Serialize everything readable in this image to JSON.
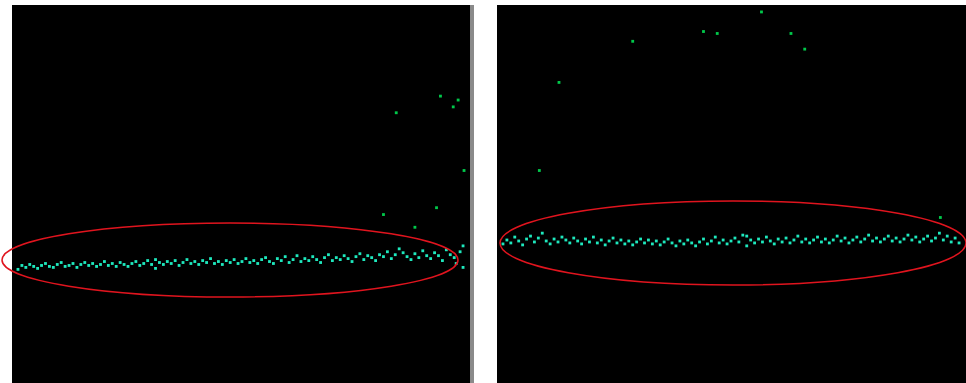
{
  "chart_data": [
    {
      "type": "scatter",
      "xlim": [
        0,
        458
      ],
      "ylim": [
        0,
        378
      ],
      "grid": false,
      "tick_labels": false,
      "series": [
        {
          "color": "#1ee8bd",
          "marker": "square",
          "values": [
            [
              2,
              112
            ],
            [
              6,
              116
            ],
            [
              10,
              114
            ],
            [
              14,
              117
            ],
            [
              18,
              115
            ],
            [
              22,
              113
            ],
            [
              26,
              116
            ],
            [
              30,
              118
            ],
            [
              34,
              115
            ],
            [
              38,
              114
            ],
            [
              42,
              117
            ],
            [
              46,
              119
            ],
            [
              50,
              115
            ],
            [
              54,
              116
            ],
            [
              58,
              118
            ],
            [
              62,
              114
            ],
            [
              66,
              117
            ],
            [
              70,
              119
            ],
            [
              74,
              116
            ],
            [
              78,
              118
            ],
            [
              82,
              115
            ],
            [
              86,
              117
            ],
            [
              90,
              120
            ],
            [
              94,
              116
            ],
            [
              98,
              118
            ],
            [
              102,
              115
            ],
            [
              106,
              119
            ],
            [
              110,
              117
            ],
            [
              114,
              115
            ],
            [
              118,
              118
            ],
            [
              122,
              120
            ],
            [
              126,
              116
            ],
            [
              130,
              118
            ],
            [
              134,
              121
            ],
            [
              138,
              117
            ],
            [
              142,
              113
            ],
            [
              142,
              122
            ],
            [
              146,
              119
            ],
            [
              150,
              117
            ],
            [
              154,
              120
            ],
            [
              158,
              118
            ],
            [
              162,
              121
            ],
            [
              166,
              116
            ],
            [
              170,
              119
            ],
            [
              174,
              122
            ],
            [
              178,
              118
            ],
            [
              182,
              120
            ],
            [
              186,
              117
            ],
            [
              190,
              121
            ],
            [
              194,
              119
            ],
            [
              198,
              123
            ],
            [
              202,
              118
            ],
            [
              206,
              120
            ],
            [
              210,
              117
            ],
            [
              214,
              121
            ],
            [
              218,
              119
            ],
            [
              222,
              122
            ],
            [
              226,
              118
            ],
            [
              230,
              120
            ],
            [
              234,
              123
            ],
            [
              238,
              119
            ],
            [
              242,
              121
            ],
            [
              246,
              118
            ],
            [
              250,
              122
            ],
            [
              254,
              124
            ],
            [
              258,
              120
            ],
            [
              262,
              118
            ],
            [
              266,
              123
            ],
            [
              270,
              121
            ],
            [
              274,
              125
            ],
            [
              278,
              119
            ],
            [
              282,
              122
            ],
            [
              286,
              126
            ],
            [
              290,
              120
            ],
            [
              294,
              123
            ],
            [
              298,
              121
            ],
            [
              302,
              125
            ],
            [
              306,
              122
            ],
            [
              310,
              119
            ],
            [
              314,
              124
            ],
            [
              318,
              127
            ],
            [
              322,
              121
            ],
            [
              326,
              124
            ],
            [
              330,
              122
            ],
            [
              334,
              126
            ],
            [
              338,
              123
            ],
            [
              342,
              120
            ],
            [
              346,
              125
            ],
            [
              350,
              128
            ],
            [
              354,
              122
            ],
            [
              358,
              126
            ],
            [
              362,
              124
            ],
            [
              366,
              121
            ],
            [
              370,
              127
            ],
            [
              374,
              125
            ],
            [
              378,
              130
            ],
            [
              382,
              123
            ],
            [
              386,
              127
            ],
            [
              390,
              133
            ],
            [
              394,
              129
            ],
            [
              398,
              125
            ],
            [
              402,
              122
            ],
            [
              406,
              128
            ],
            [
              410,
              124
            ],
            [
              414,
              131
            ],
            [
              418,
              126
            ],
            [
              422,
              123
            ],
            [
              426,
              129
            ],
            [
              430,
              126
            ],
            [
              434,
              121
            ],
            [
              438,
              132
            ],
            [
              442,
              127
            ],
            [
              446,
              124
            ],
            [
              448,
              118
            ],
            [
              452,
              130
            ],
            [
              455,
              114
            ],
            [
              455,
              136
            ]
          ]
        },
        {
          "color": "#00c84a",
          "marker": "square",
          "values": [
            [
              387,
              272
            ],
            [
              432,
              289
            ],
            [
              445,
              278
            ],
            [
              450,
              285
            ],
            [
              374,
              168
            ],
            [
              428,
              175
            ],
            [
              406,
              155
            ],
            [
              456,
              213
            ]
          ]
        }
      ]
    },
    {
      "type": "scatter",
      "xlim": [
        0,
        469
      ],
      "ylim": [
        0,
        378
      ],
      "grid": false,
      "tick_labels": false,
      "series": [
        {
          "color": "#1ee8bd",
          "marker": "square",
          "values": [
            [
              2,
              138
            ],
            [
              6,
              142
            ],
            [
              10,
              139
            ],
            [
              14,
              145
            ],
            [
              18,
              141
            ],
            [
              22,
              137
            ],
            [
              26,
              143
            ],
            [
              30,
              146
            ],
            [
              34,
              140
            ],
            [
              38,
              144
            ],
            [
              42,
              149
            ],
            [
              46,
              141
            ],
            [
              50,
              138
            ],
            [
              54,
              143
            ],
            [
              58,
              140
            ],
            [
              62,
              145
            ],
            [
              66,
              142
            ],
            [
              70,
              139
            ],
            [
              74,
              144
            ],
            [
              78,
              141
            ],
            [
              82,
              138
            ],
            [
              86,
              143
            ],
            [
              90,
              140
            ],
            [
              94,
              145
            ],
            [
              98,
              139
            ],
            [
              102,
              142
            ],
            [
              106,
              137
            ],
            [
              110,
              141
            ],
            [
              114,
              144
            ],
            [
              118,
              139
            ],
            [
              122,
              142
            ],
            [
              126,
              138
            ],
            [
              130,
              141
            ],
            [
              134,
              137
            ],
            [
              138,
              140
            ],
            [
              142,
              143
            ],
            [
              146,
              139
            ],
            [
              150,
              142
            ],
            [
              154,
              138
            ],
            [
              158,
              141
            ],
            [
              162,
              137
            ],
            [
              166,
              140
            ],
            [
              170,
              143
            ],
            [
              174,
              139
            ],
            [
              178,
              136
            ],
            [
              182,
              141
            ],
            [
              186,
              138
            ],
            [
              190,
              142
            ],
            [
              194,
              139
            ],
            [
              198,
              136
            ],
            [
              202,
              140
            ],
            [
              206,
              143
            ],
            [
              210,
              138
            ],
            [
              214,
              141
            ],
            [
              218,
              145
            ],
            [
              222,
              139
            ],
            [
              226,
              142
            ],
            [
              230,
              138
            ],
            [
              234,
              141
            ],
            [
              238,
              144
            ],
            [
              242,
              140
            ],
            [
              246,
              147
            ],
            [
              250,
              136
            ],
            [
              250,
              146
            ],
            [
              254,
              142
            ],
            [
              258,
              139
            ],
            [
              262,
              143
            ],
            [
              266,
              140
            ],
            [
              270,
              145
            ],
            [
              274,
              141
            ],
            [
              278,
              138
            ],
            [
              282,
              143
            ],
            [
              286,
              140
            ],
            [
              290,
              144
            ],
            [
              294,
              139
            ],
            [
              298,
              142
            ],
            [
              302,
              146
            ],
            [
              306,
              140
            ],
            [
              310,
              143
            ],
            [
              314,
              139
            ],
            [
              318,
              142
            ],
            [
              322,
              145
            ],
            [
              326,
              140
            ],
            [
              330,
              143
            ],
            [
              334,
              139
            ],
            [
              338,
              142
            ],
            [
              342,
              146
            ],
            [
              346,
              141
            ],
            [
              350,
              144
            ],
            [
              354,
              139
            ],
            [
              358,
              142
            ],
            [
              362,
              145
            ],
            [
              366,
              140
            ],
            [
              370,
              143
            ],
            [
              374,
              147
            ],
            [
              378,
              141
            ],
            [
              382,
              144
            ],
            [
              386,
              140
            ],
            [
              390,
              143
            ],
            [
              394,
              146
            ],
            [
              398,
              141
            ],
            [
              402,
              144
            ],
            [
              406,
              140
            ],
            [
              410,
              143
            ],
            [
              414,
              147
            ],
            [
              418,
              142
            ],
            [
              422,
              145
            ],
            [
              426,
              140
            ],
            [
              430,
              143
            ],
            [
              434,
              146
            ],
            [
              438,
              141
            ],
            [
              442,
              144
            ],
            [
              446,
              149
            ],
            [
              450,
              142
            ],
            [
              454,
              146
            ],
            [
              458,
              140
            ],
            [
              462,
              144
            ],
            [
              466,
              139
            ]
          ]
        },
        {
          "color": "#00c84a",
          "marker": "square",
          "values": [
            [
              134,
              345
            ],
            [
              59,
              303
            ],
            [
              39,
              213
            ],
            [
              206,
              355
            ],
            [
              220,
              353
            ],
            [
              265,
              375
            ],
            [
              295,
              353
            ],
            [
              309,
              337
            ],
            [
              447,
              165
            ]
          ]
        }
      ]
    }
  ]
}
